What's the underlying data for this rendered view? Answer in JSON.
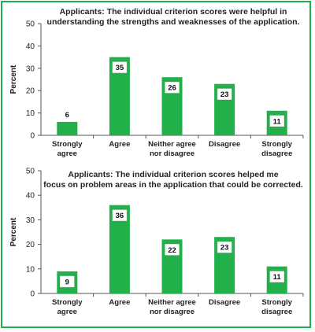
{
  "chart_data": [
    {
      "type": "bar",
      "title": [
        "Applicants:  The individual criterion scores were helpful in",
        "understanding the strengths and weaknesses of the application."
      ],
      "ylabel": "Percent",
      "xlabel": "",
      "ylim": [
        0,
        50
      ],
      "yticks": [
        0,
        10,
        20,
        30,
        40,
        50
      ],
      "categories": [
        [
          "Strongly",
          "agree"
        ],
        [
          "Agree"
        ],
        [
          "Neither agree",
          "nor disagree"
        ],
        [
          "Disagree"
        ],
        [
          "Strongly",
          "disagree"
        ]
      ],
      "values": [
        6,
        35,
        26,
        23,
        11
      ],
      "label_style": [
        "above",
        "inside",
        "inside",
        "inside",
        "inside"
      ],
      "bar_color": "#22b04b",
      "grid": false
    },
    {
      "type": "bar",
      "title": [
        "Applicants:  The individual criterion scores helped me",
        "focus on problem areas in the application that could be corrected."
      ],
      "ylabel": "Percent",
      "xlabel": "",
      "ylim": [
        0,
        50
      ],
      "yticks": [
        0,
        10,
        20,
        30,
        40,
        50
      ],
      "categories": [
        [
          "Strongly",
          "agree"
        ],
        [
          "Agree"
        ],
        [
          "Neither agree",
          "nor disagree"
        ],
        [
          "Disagree"
        ],
        [
          "Strongly",
          "disagree"
        ]
      ],
      "values": [
        9,
        36,
        22,
        23,
        11
      ],
      "label_style": [
        "inside",
        "inside",
        "inside",
        "inside",
        "inside"
      ],
      "bar_color": "#22b04b",
      "grid": false
    }
  ]
}
